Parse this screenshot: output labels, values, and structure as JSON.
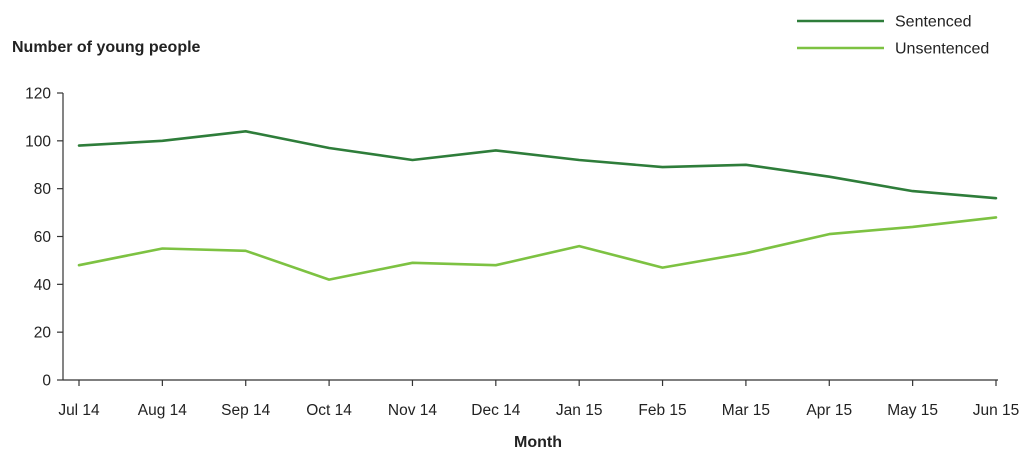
{
  "chart_data": {
    "type": "line",
    "title": "",
    "ylabel": "Number of young people",
    "xlabel": "Month",
    "categories": [
      "Jul 14",
      "Aug 14",
      "Sep 14",
      "Oct 14",
      "Nov 14",
      "Dec 14",
      "Jan 15",
      "Feb 15",
      "Mar 15",
      "Apr 15",
      "May 15",
      "Jun 15"
    ],
    "ylim": [
      0,
      120
    ],
    "yticks": [
      0,
      20,
      40,
      60,
      80,
      100,
      120
    ],
    "grid": false,
    "legend_position": "top-right",
    "series": [
      {
        "name": "Sentenced",
        "color": "#2e7d3a",
        "values": [
          98,
          100,
          104,
          97,
          92,
          96,
          92,
          89,
          90,
          85,
          79,
          76
        ]
      },
      {
        "name": "Unsentenced",
        "color": "#7dc242",
        "values": [
          48,
          55,
          54,
          42,
          49,
          48,
          56,
          47,
          53,
          61,
          64,
          68
        ]
      }
    ]
  }
}
